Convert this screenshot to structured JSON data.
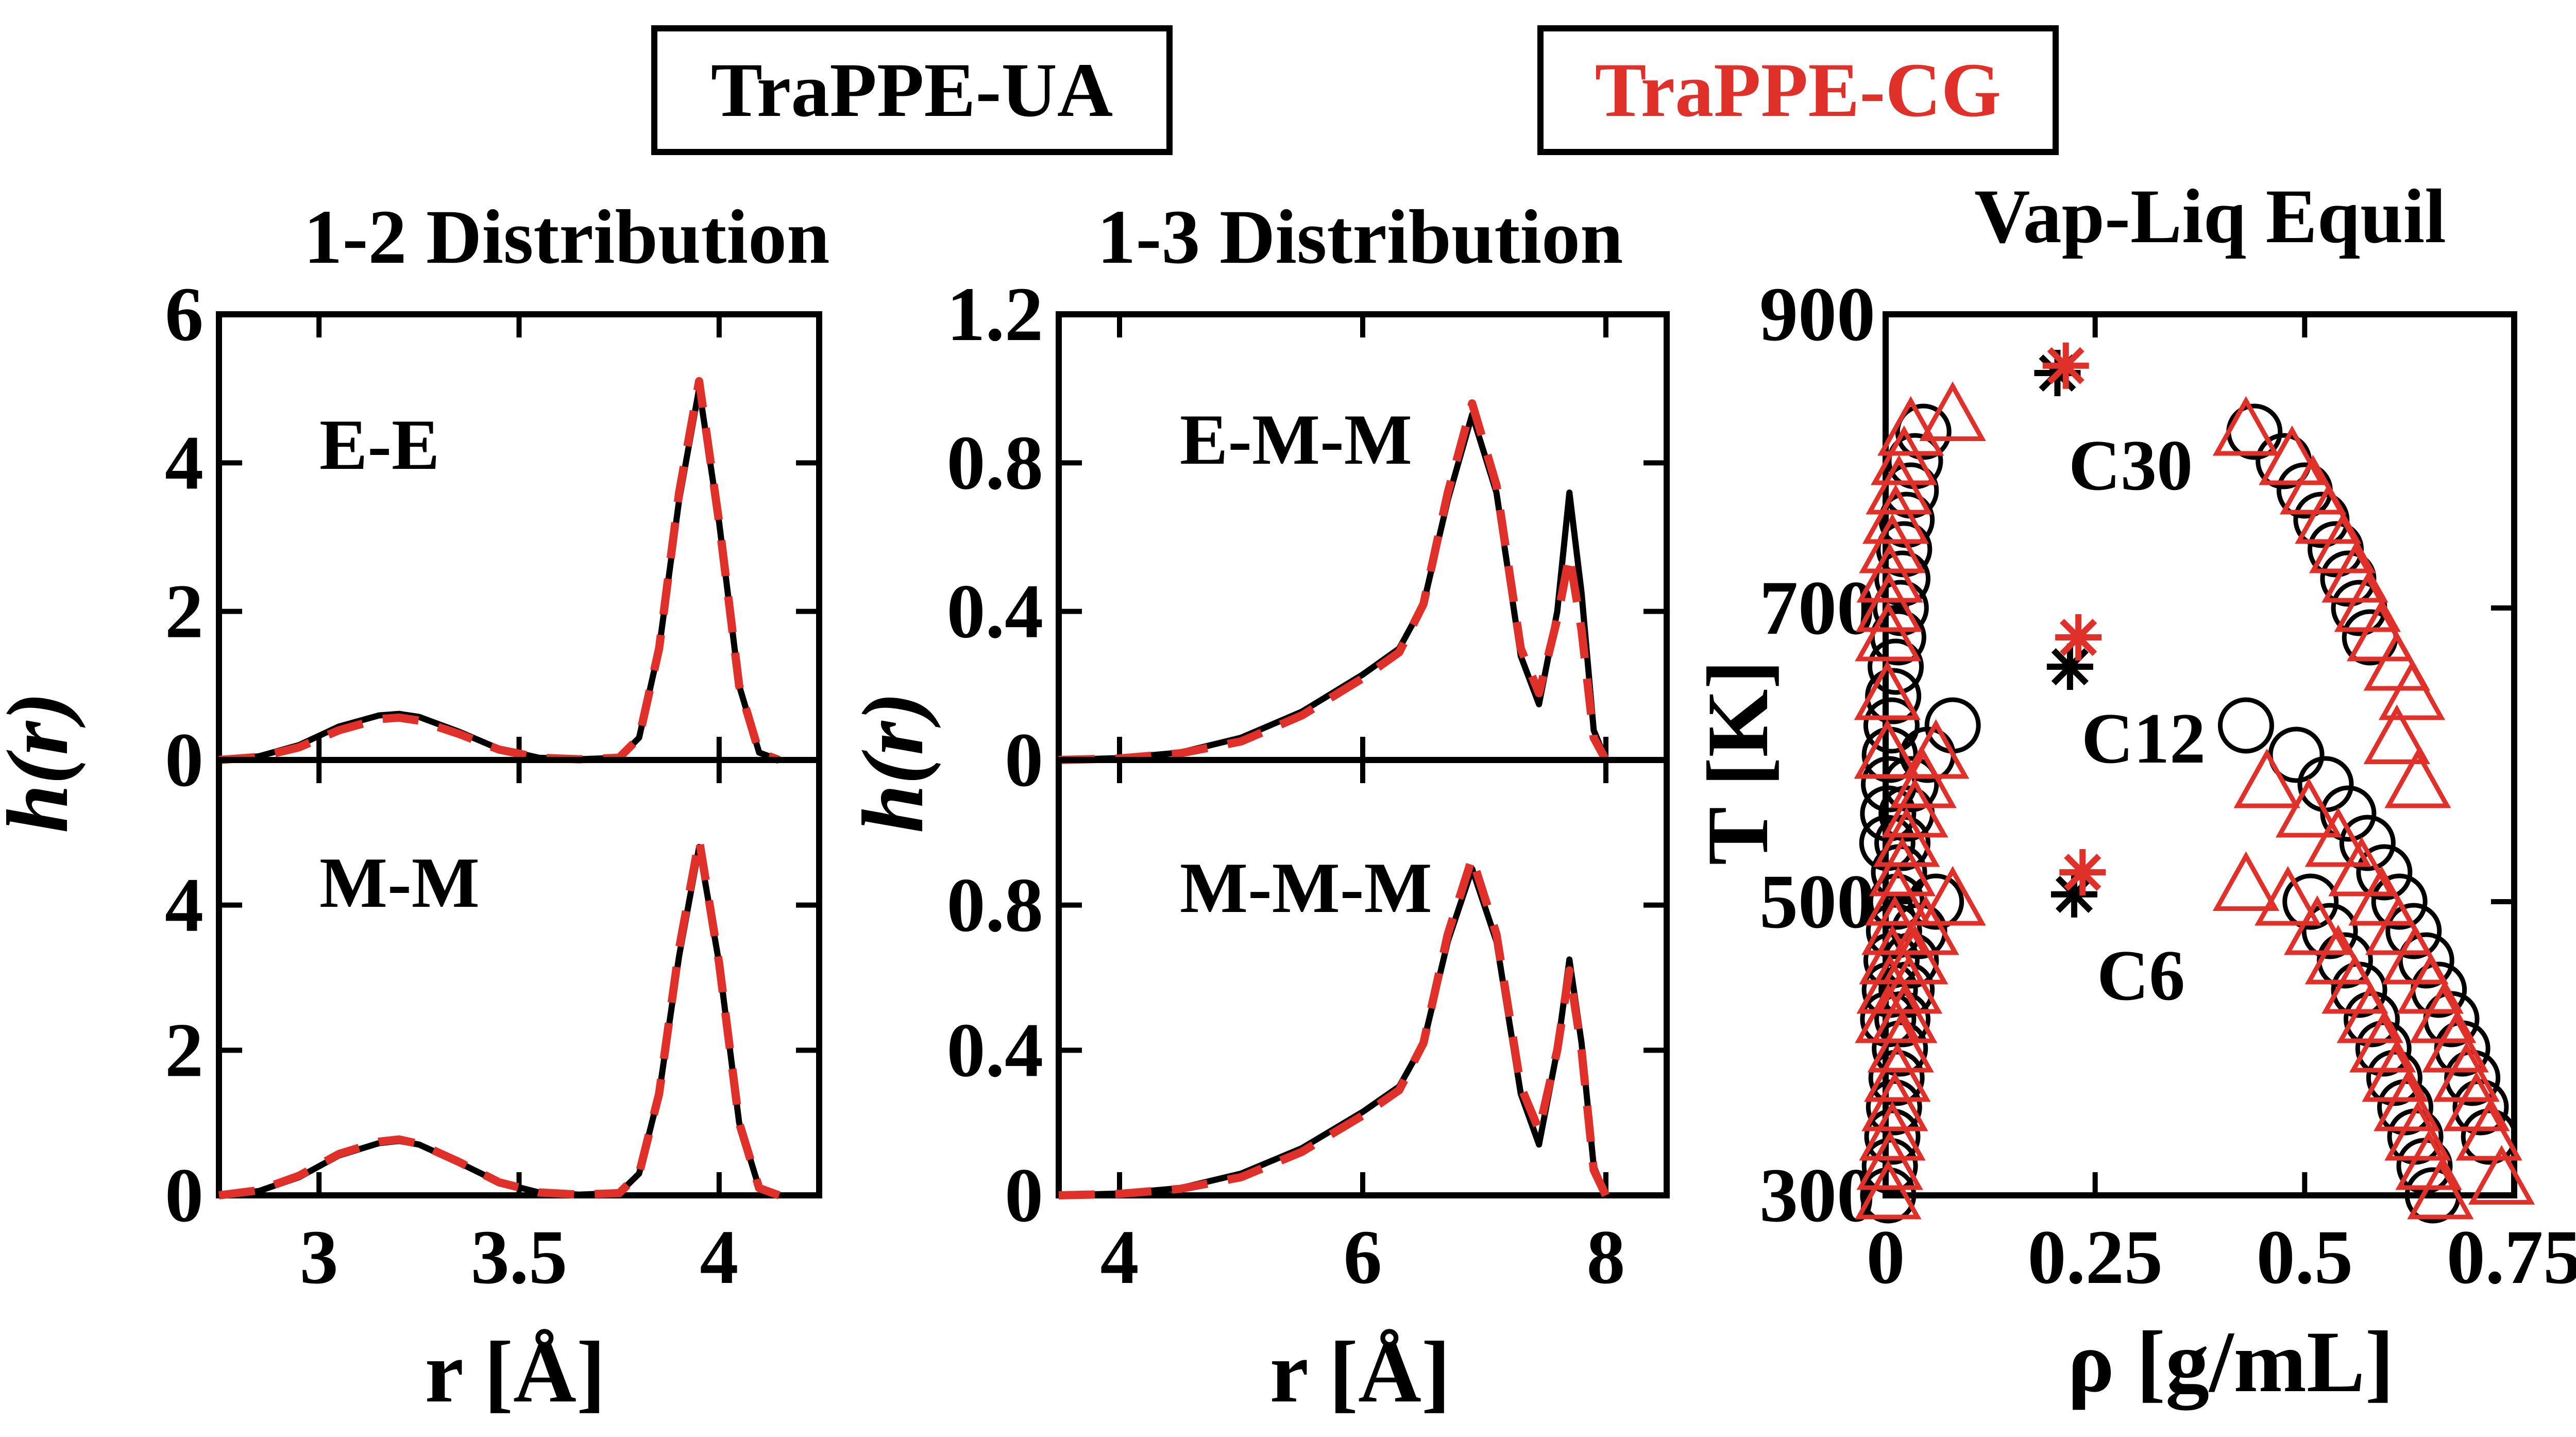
{
  "colors": {
    "ua": "#000000",
    "cg": "#e0302a"
  },
  "legend": {
    "ua_label": "TraPPE-UA",
    "cg_label": "TraPPE-CG"
  },
  "chart_data": [
    {
      "id": "p12",
      "type": "line",
      "title": "1-2 Distribution",
      "xlabel": "r [Å]",
      "ylabel": "h(r)",
      "xlim": [
        2.75,
        4.25
      ],
      "xticks": [
        3,
        3.5,
        4
      ],
      "xtick_labels": [
        "3",
        "3.5",
        "4"
      ],
      "panels": [
        {
          "name": "E-E",
          "ylim": [
            0,
            6
          ],
          "yticks": [
            0,
            2,
            4,
            6
          ],
          "ytick_labels": [
            "0",
            "2",
            "4",
            "6"
          ],
          "series": [
            {
              "key": "ua",
              "x": [
                2.75,
                2.85,
                2.95,
                3.05,
                3.15,
                3.2,
                3.25,
                3.35,
                3.45,
                3.55,
                3.65,
                3.75,
                3.8,
                3.85,
                3.9,
                3.95,
                4.0,
                4.05,
                4.1,
                4.15
              ],
              "y": [
                0,
                0.05,
                0.2,
                0.45,
                0.6,
                0.62,
                0.58,
                0.38,
                0.15,
                0.03,
                0.01,
                0.03,
                0.3,
                1.5,
                3.5,
                5.0,
                3.2,
                1.0,
                0.1,
                0
              ]
            },
            {
              "key": "cg",
              "x": [
                2.75,
                2.85,
                2.95,
                3.05,
                3.15,
                3.2,
                3.25,
                3.35,
                3.45,
                3.55,
                3.65,
                3.75,
                3.8,
                3.85,
                3.9,
                3.95,
                4.0,
                4.05,
                4.1,
                4.15
              ],
              "y": [
                0,
                0.04,
                0.17,
                0.4,
                0.55,
                0.57,
                0.53,
                0.35,
                0.14,
                0.03,
                0.01,
                0.03,
                0.3,
                1.5,
                3.6,
                5.1,
                3.2,
                1.0,
                0.1,
                0
              ]
            }
          ]
        },
        {
          "name": "M-M",
          "ylim": [
            0,
            6
          ],
          "yticks": [
            0,
            2,
            4
          ],
          "ytick_labels": [
            "0",
            "2",
            "4"
          ],
          "series": [
            {
              "key": "ua",
              "x": [
                2.75,
                2.85,
                2.95,
                3.05,
                3.15,
                3.2,
                3.25,
                3.35,
                3.45,
                3.55,
                3.65,
                3.75,
                3.8,
                3.85,
                3.9,
                3.95,
                4.0,
                4.05,
                4.1,
                4.15
              ],
              "y": [
                0,
                0.06,
                0.25,
                0.55,
                0.72,
                0.75,
                0.7,
                0.45,
                0.18,
                0.04,
                0.01,
                0.03,
                0.3,
                1.4,
                3.3,
                4.8,
                3.2,
                1.0,
                0.1,
                0
              ]
            },
            {
              "key": "cg",
              "x": [
                2.75,
                2.85,
                2.95,
                3.05,
                3.15,
                3.2,
                3.25,
                3.35,
                3.45,
                3.55,
                3.65,
                3.75,
                3.8,
                3.85,
                3.9,
                3.95,
                4.0,
                4.05,
                4.1,
                4.15
              ],
              "y": [
                0,
                0.07,
                0.27,
                0.57,
                0.74,
                0.77,
                0.71,
                0.46,
                0.18,
                0.04,
                0.01,
                0.03,
                0.3,
                1.4,
                3.4,
                4.9,
                3.2,
                1.0,
                0.1,
                0
              ]
            }
          ]
        }
      ]
    },
    {
      "id": "p13",
      "type": "line",
      "title": "1-3 Distribution",
      "xlabel": "r [Å]",
      "ylabel": "h(r)",
      "xlim": [
        3.5,
        8.5
      ],
      "xticks": [
        4,
        6,
        8
      ],
      "xtick_labels": [
        "4",
        "6",
        "8"
      ],
      "panels": [
        {
          "name": "E-M-M",
          "ylim": [
            0,
            1.2
          ],
          "yticks": [
            0,
            0.4,
            0.8,
            1.2
          ],
          "ytick_labels": [
            "0",
            "0.4",
            "0.8",
            "1.2"
          ],
          "series": [
            {
              "key": "ua",
              "x": [
                3.5,
                4,
                4.5,
                5,
                5.5,
                6,
                6.3,
                6.5,
                6.7,
                6.9,
                7.1,
                7.3,
                7.45,
                7.6,
                7.7,
                7.8,
                7.9,
                8.0
              ],
              "y": [
                0,
                0.005,
                0.02,
                0.06,
                0.13,
                0.23,
                0.3,
                0.42,
                0.7,
                0.93,
                0.72,
                0.28,
                0.15,
                0.4,
                0.72,
                0.45,
                0.08,
                0
              ]
            },
            {
              "key": "cg",
              "x": [
                3.5,
                4,
                4.5,
                5,
                5.5,
                6,
                6.3,
                6.5,
                6.7,
                6.9,
                7.1,
                7.3,
                7.45,
                7.6,
                7.7,
                7.8,
                7.9,
                8.0
              ],
              "y": [
                0,
                0.004,
                0.018,
                0.05,
                0.12,
                0.22,
                0.29,
                0.42,
                0.72,
                0.96,
                0.74,
                0.3,
                0.18,
                0.38,
                0.55,
                0.35,
                0.06,
                0
              ]
            }
          ]
        },
        {
          "name": "M-M-M",
          "ylim": [
            0,
            1.2
          ],
          "yticks": [
            0,
            0.4,
            0.8
          ],
          "ytick_labels": [
            "0",
            "0.4",
            "0.8"
          ],
          "series": [
            {
              "key": "ua",
              "x": [
                3.5,
                4,
                4.5,
                5,
                5.5,
                6,
                6.3,
                6.5,
                6.7,
                6.9,
                7.1,
                7.3,
                7.45,
                7.6,
                7.7,
                7.8,
                7.9,
                8.0
              ],
              "y": [
                0,
                0.005,
                0.02,
                0.06,
                0.13,
                0.23,
                0.3,
                0.42,
                0.7,
                0.9,
                0.7,
                0.28,
                0.14,
                0.4,
                0.65,
                0.42,
                0.08,
                0
              ]
            },
            {
              "key": "cg",
              "x": [
                3.5,
                4,
                4.5,
                5,
                5.5,
                6,
                6.3,
                6.5,
                6.7,
                6.9,
                7.1,
                7.3,
                7.45,
                7.6,
                7.7,
                7.8,
                7.9,
                8.0
              ],
              "y": [
                0,
                0.004,
                0.018,
                0.05,
                0.12,
                0.22,
                0.29,
                0.42,
                0.72,
                0.93,
                0.72,
                0.3,
                0.18,
                0.4,
                0.62,
                0.4,
                0.07,
                0
              ]
            }
          ]
        }
      ]
    },
    {
      "id": "vle",
      "type": "scatter",
      "title": "Vap-Liq Equil",
      "xlabel": "ρ [g/mL]",
      "ylabel": "T [K]",
      "xlim": [
        0,
        0.75
      ],
      "ylim": [
        300,
        900
      ],
      "xticks": [
        0,
        0.25,
        0.5,
        0.75
      ],
      "xtick_labels": [
        "0",
        "0.25",
        "0.5",
        "0.75"
      ],
      "yticks": [
        300,
        500,
        700,
        900
      ],
      "ytick_labels": [
        "300",
        "500",
        "700",
        "900"
      ],
      "annotations": [
        "C30",
        "C12",
        "C6"
      ],
      "ua_points": [
        [
          0.003,
          300
        ],
        [
          0.005,
          320
        ],
        [
          0.008,
          340
        ],
        [
          0.01,
          360
        ],
        [
          0.013,
          380
        ],
        [
          0.017,
          400
        ],
        [
          0.02,
          420
        ],
        [
          0.025,
          440
        ],
        [
          0.03,
          460
        ],
        [
          0.04,
          480
        ],
        [
          0.06,
          500
        ],
        [
          0.653,
          300
        ],
        [
          0.643,
          320
        ],
        [
          0.632,
          340
        ],
        [
          0.62,
          360
        ],
        [
          0.607,
          380
        ],
        [
          0.594,
          400
        ],
        [
          0.58,
          420
        ],
        [
          0.565,
          440
        ],
        [
          0.548,
          460
        ],
        [
          0.53,
          480
        ],
        [
          0.507,
          500
        ],
        [
          0.003,
          420
        ],
        [
          0.005,
          440
        ],
        [
          0.007,
          460
        ],
        [
          0.01,
          480
        ],
        [
          0.013,
          500
        ],
        [
          0.016,
          520
        ],
        [
          0.02,
          540
        ],
        [
          0.025,
          560
        ],
        [
          0.03,
          580
        ],
        [
          0.05,
          600
        ],
        [
          0.08,
          620
        ],
        [
          0.72,
          340
        ],
        [
          0.71,
          360
        ],
        [
          0.7,
          380
        ],
        [
          0.688,
          400
        ],
        [
          0.675,
          420
        ],
        [
          0.66,
          440
        ],
        [
          0.645,
          460
        ],
        [
          0.63,
          480
        ],
        [
          0.613,
          500
        ],
        [
          0.595,
          520
        ],
        [
          0.575,
          540
        ],
        [
          0.552,
          560
        ],
        [
          0.525,
          580
        ],
        [
          0.49,
          600
        ],
        [
          0.43,
          620
        ],
        [
          0.002,
          540
        ],
        [
          0.003,
          560
        ],
        [
          0.004,
          580
        ],
        [
          0.005,
          600
        ],
        [
          0.007,
          620
        ],
        [
          0.009,
          640
        ],
        [
          0.012,
          660
        ],
        [
          0.015,
          680
        ],
        [
          0.018,
          700
        ],
        [
          0.02,
          720
        ],
        [
          0.022,
          740
        ],
        [
          0.025,
          760
        ],
        [
          0.03,
          780
        ],
        [
          0.035,
          800
        ],
        [
          0.045,
          820
        ],
        [
          0.578,
          680
        ],
        [
          0.565,
          700
        ],
        [
          0.552,
          720
        ],
        [
          0.537,
          740
        ],
        [
          0.52,
          760
        ],
        [
          0.5,
          780
        ],
        [
          0.475,
          800
        ],
        [
          0.44,
          820
        ]
      ],
      "cg_points": [
        [
          0.003,
          300
        ],
        [
          0.005,
          320
        ],
        [
          0.008,
          340
        ],
        [
          0.011,
          360
        ],
        [
          0.014,
          380
        ],
        [
          0.018,
          400
        ],
        [
          0.022,
          420
        ],
        [
          0.028,
          440
        ],
        [
          0.035,
          460
        ],
        [
          0.048,
          480
        ],
        [
          0.08,
          500
        ],
        [
          0.662,
          300
        ],
        [
          0.648,
          320
        ],
        [
          0.635,
          340
        ],
        [
          0.622,
          360
        ],
        [
          0.608,
          380
        ],
        [
          0.593,
          400
        ],
        [
          0.578,
          420
        ],
        [
          0.56,
          440
        ],
        [
          0.54,
          460
        ],
        [
          0.515,
          480
        ],
        [
          0.48,
          500
        ],
        [
          0.43,
          510
        ],
        [
          0.003,
          420
        ],
        [
          0.005,
          440
        ],
        [
          0.008,
          460
        ],
        [
          0.011,
          480
        ],
        [
          0.015,
          500
        ],
        [
          0.02,
          520
        ],
        [
          0.025,
          540
        ],
        [
          0.035,
          560
        ],
        [
          0.045,
          580
        ],
        [
          0.06,
          600
        ],
        [
          0.735,
          310
        ],
        [
          0.72,
          340
        ],
        [
          0.705,
          360
        ],
        [
          0.693,
          380
        ],
        [
          0.68,
          400
        ],
        [
          0.665,
          420
        ],
        [
          0.65,
          440
        ],
        [
          0.632,
          460
        ],
        [
          0.612,
          480
        ],
        [
          0.592,
          500
        ],
        [
          0.568,
          520
        ],
        [
          0.54,
          540
        ],
        [
          0.505,
          560
        ],
        [
          0.455,
          580
        ],
        [
          0.002,
          600
        ],
        [
          0.002,
          640
        ],
        [
          0.003,
          680
        ],
        [
          0.004,
          700
        ],
        [
          0.005,
          720
        ],
        [
          0.008,
          740
        ],
        [
          0.012,
          760
        ],
        [
          0.016,
          780
        ],
        [
          0.022,
          800
        ],
        [
          0.03,
          820
        ],
        [
          0.08,
          830
        ],
        [
          0.628,
          640
        ],
        [
          0.61,
          660
        ],
        [
          0.59,
          680
        ],
        [
          0.575,
          700
        ],
        [
          0.56,
          720
        ],
        [
          0.545,
          740
        ],
        [
          0.528,
          760
        ],
        [
          0.51,
          780
        ],
        [
          0.485,
          800
        ],
        [
          0.43,
          820
        ],
        [
          0.635,
          580
        ],
        [
          0.61,
          610
        ],
        [
          0.59,
          680
        ]
      ],
      "ua_criticals": [
        [
          0.205,
          860
        ],
        [
          0.22,
          660
        ],
        [
          0.225,
          505
        ]
      ],
      "cg_criticals": [
        [
          0.215,
          865
        ],
        [
          0.23,
          680
        ],
        [
          0.235,
          520
        ]
      ]
    }
  ]
}
